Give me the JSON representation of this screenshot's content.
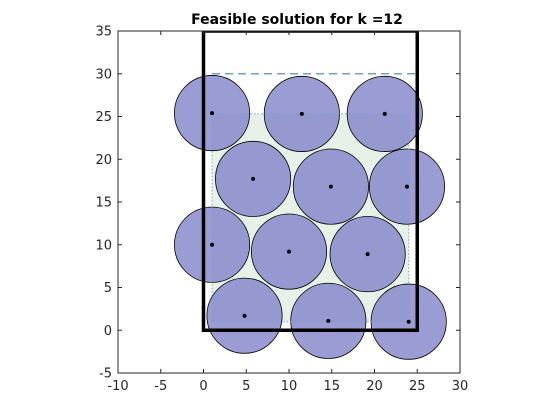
{
  "chart_data": {
    "type": "scatter",
    "title": "Feasible solution for k =12",
    "xlabel": "",
    "ylabel": "",
    "xlim": [
      -10,
      30
    ],
    "ylim": [
      -5,
      35
    ],
    "xticks": [
      -10,
      -5,
      0,
      5,
      10,
      15,
      20,
      25,
      30
    ],
    "yticks": [
      -5,
      0,
      5,
      10,
      15,
      20,
      25,
      30,
      35
    ],
    "grid": false,
    "container_rectangle": {
      "x": [
        0,
        25
      ],
      "y": [
        0,
        35
      ]
    },
    "dashed_line": {
      "x": [
        1,
        25
      ],
      "y": 30
    },
    "shaded_region": {
      "x": [
        1,
        24
      ],
      "y": [
        1,
        25.3
      ]
    },
    "circle_radius": 4.4,
    "circle_color": "#7b7bc7",
    "rectangle_color": "#000000",
    "dashed_color": "#6f9fd0",
    "shade_color": "#d5e6d5",
    "centers": [
      {
        "x": 1.0,
        "y": 25.4
      },
      {
        "x": 11.5,
        "y": 25.3
      },
      {
        "x": 21.2,
        "y": 25.3
      },
      {
        "x": 5.8,
        "y": 17.7
      },
      {
        "x": 14.9,
        "y": 16.8
      },
      {
        "x": 23.8,
        "y": 16.8
      },
      {
        "x": 1.0,
        "y": 10.0
      },
      {
        "x": 10.0,
        "y": 9.2
      },
      {
        "x": 19.2,
        "y": 8.9
      },
      {
        "x": 4.8,
        "y": 1.7
      },
      {
        "x": 14.6,
        "y": 1.1
      },
      {
        "x": 24.0,
        "y": 1.0
      }
    ]
  }
}
